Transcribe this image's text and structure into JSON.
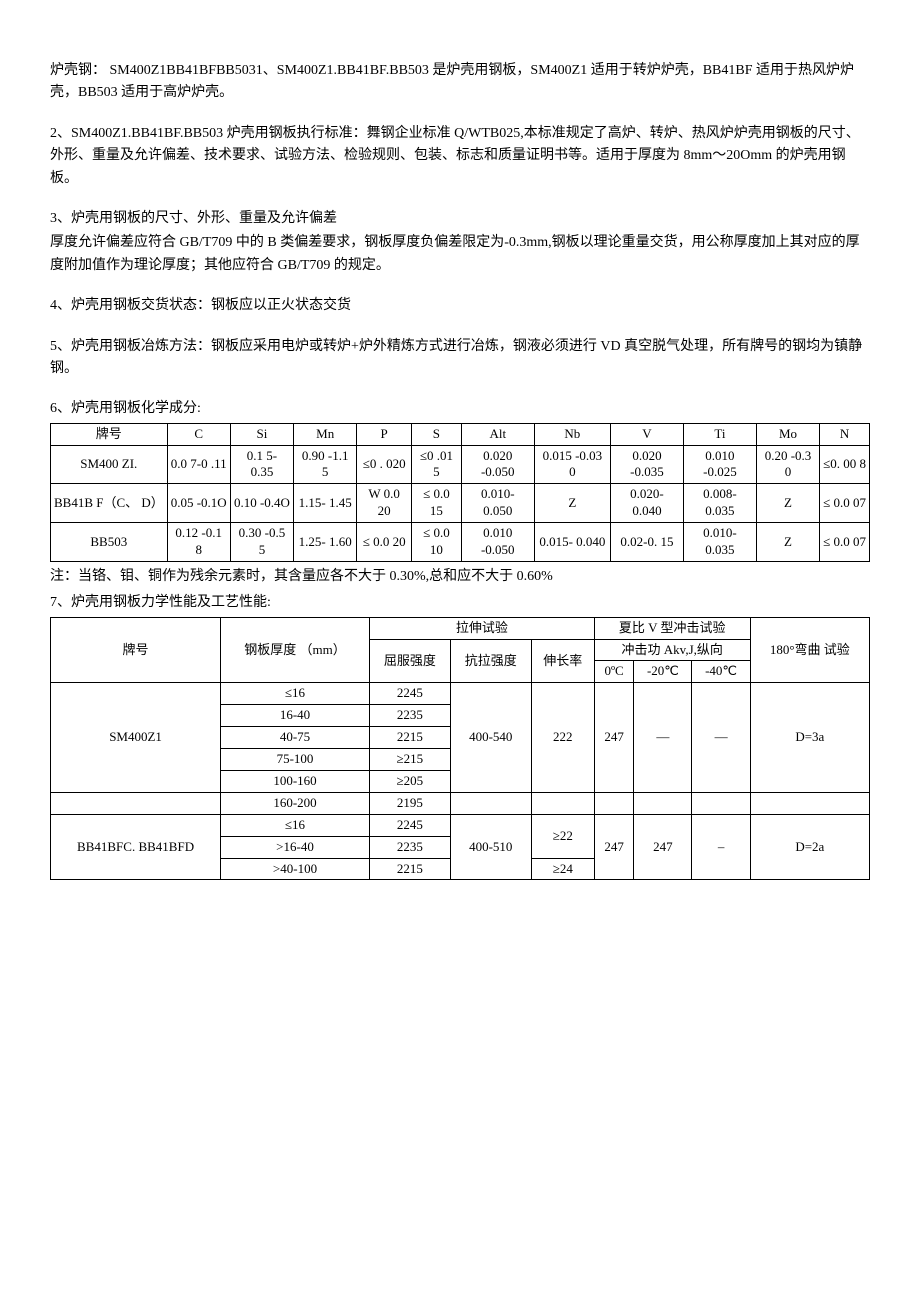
{
  "p1_title": "炉壳钢：",
  "p1": "SM400Z1BB41BFBB5031、SM400Z1.BB41BF.BB503 是炉壳用钢板，SM400Z1 适用于转炉炉壳，BB41BF 适用于热风炉炉壳，BB503 适用于高炉炉壳。",
  "p2": "2、SM400Z1.BB41BF.BB503 炉壳用钢板执行标准：舞钢企业标准 Q/WTB025,本标准规定了高炉、转炉、热风炉炉壳用钢板的尺寸、外形、重量及允许偏差、技术要求、试验方法、检验规则、包装、标志和质量证明书等。适用于厚度为 8mm～20Omm 的炉壳用钢板。",
  "p3a": "3、炉壳用钢板的尺寸、外形、重量及允许偏差",
  "p3b": "厚度允许偏差应符合 GB/T709 中的 B 类偏差要求，钢板厚度负偏差限定为-0.3mm,钢板以理论重量交货，用公称厚度加上其对应的厚度附加值作为理论厚度；其他应符合 GB/T709 的规定。",
  "p4": "4、炉壳用钢板交货状态：钢板应以正火状态交货",
  "p5": "5、炉壳用钢板冶炼方法：钢板应采用电炉或转炉+炉外精炼方式进行冶炼，钢液必须进行 VD 真空脱气处理，所有牌号的钢均为镇静钢。",
  "s6": "6、炉壳用钢板化学成分:",
  "t1": {
    "headers": [
      "牌号",
      "C",
      "Si",
      "Mn",
      "P",
      "S",
      "Alt",
      "Nb",
      "V",
      "Ti",
      "Mo",
      "N"
    ],
    "rows": [
      [
        "SM400 ZI.",
        "0.0 7-0 .11",
        "0.1 5- 0.35",
        "0.90 -1.1 5",
        "≤0 . 020",
        "≤0 .01 5",
        "0.020 -0.050",
        "0.015 -0.03 0",
        "0.020 -0.035",
        "0.010 -0.025",
        "0.20 -0.3 0",
        "≤0. 00 8"
      ],
      [
        "BB41B F（C、 D）",
        "0.05 -0.1O",
        "0.10 -0.4O",
        "1.15- 1.45",
        "W 0.0 20",
        "≤ 0.0 15",
        "0.010- 0.050",
        "Z",
        "0.020- 0.040",
        "0.008- 0.035",
        "Z",
        "≤ 0.0 07"
      ],
      [
        "BB503",
        "0.12 -0.1 8",
        "0.30 -0.5 5",
        "1.25- 1.60",
        "≤ 0.0 20",
        "≤ 0.0 10",
        "0.010 -0.050",
        "0.015- 0.040",
        "0.02-0. 15",
        "0.010- 0.035",
        "Z",
        "≤ 0.0 07"
      ]
    ]
  },
  "note1": "注：当铬、钼、铜作为残余元素时，其含量应各不大于 0.30%,总和应不大于 0.60%",
  "s7": "7、炉壳用钢板力学性能及工艺性能:",
  "t2": {
    "h_brand": "牌号",
    "h_thick": "钢板厚度 （mm）",
    "h_tensile": "拉伸试验",
    "h_charpy": "夏比 V 型冲击试验",
    "h_bend": "180°弯曲 试验",
    "h_yield": "屈服强度",
    "h_ts": "抗拉强度",
    "h_elong": "伸长率",
    "h_akv": "冲击功 Akv,J,纵向",
    "h_0c": "0ºC",
    "h_n20": "-20℃",
    "h_n40": "-40℃",
    "rows1": [
      [
        "≤16",
        "2245"
      ],
      [
        "16-40",
        "2235"
      ],
      [
        "40-75",
        "2215"
      ],
      [
        "75-100",
        "≥215"
      ],
      [
        "100-160",
        "≥205"
      ],
      [
        "160-200",
        "2195"
      ]
    ],
    "brand1": "SM400Z1",
    "ts1": "400-540",
    "el1": "222",
    "ak1": "247",
    "dash": "—",
    "bend1": "D=3a",
    "brand2": "BB41BFC. BB41BFD",
    "rows2": [
      [
        "≤16",
        "2245",
        "≥22"
      ],
      [
        ">16-40",
        "2235",
        ""
      ],
      [
        ">40-100",
        "2215",
        "≥24"
      ]
    ],
    "ts2": "400-510",
    "el2a": "≥22",
    "el2b": "≥24",
    "ak2a": "247",
    "ak2b": "247",
    "dash2": "–",
    "bend2": "D=2a"
  }
}
